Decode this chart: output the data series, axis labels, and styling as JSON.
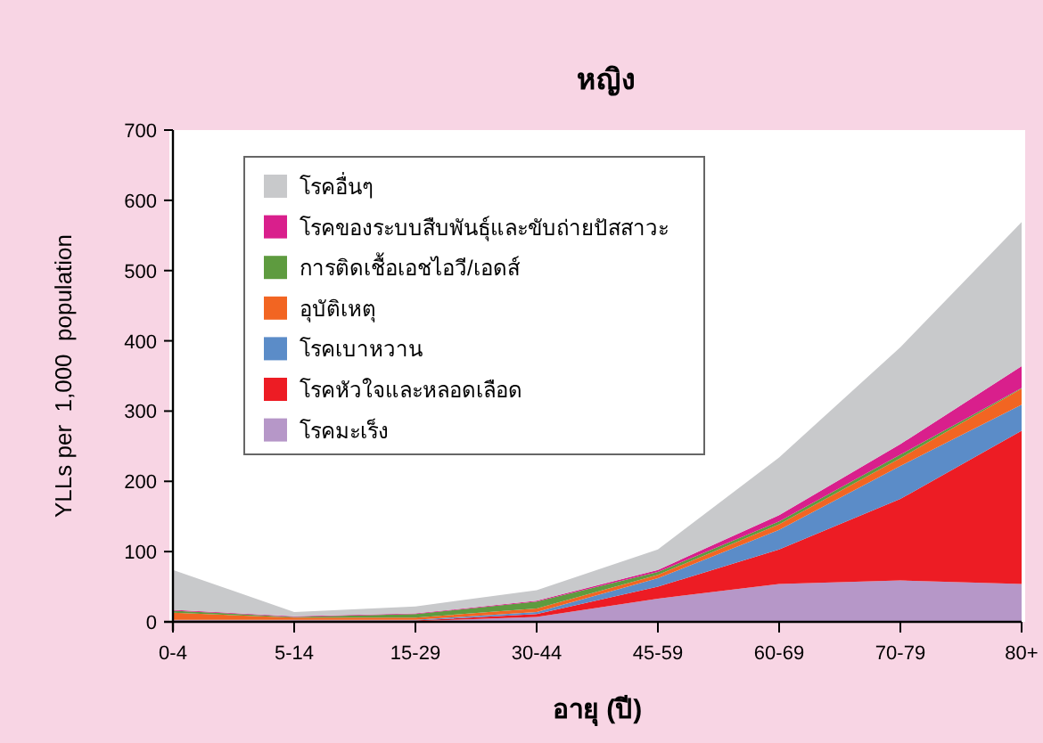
{
  "chart_data": {
    "type": "area",
    "stacked": true,
    "title": "หญิง",
    "xlabel": "อายุ (ปี)",
    "ylabel": "YLLs per  1,000  population",
    "categories": [
      "0-4",
      "5-14",
      "15-29",
      "30-44",
      "45-59",
      "60-69",
      "70-79",
      "80+"
    ],
    "ylim": [
      0,
      700
    ],
    "yticks": [
      0,
      100,
      200,
      300,
      400,
      500,
      600,
      700
    ],
    "grid": false,
    "legend": "top left",
    "series": [
      {
        "name": "โรคมะเร็ง",
        "color": "#b697c8",
        "values": [
          1,
          1,
          1,
          7,
          33,
          54,
          59,
          54
        ]
      },
      {
        "name": "โรคหัวใจและหลอดเลือด",
        "color": "#ed1c24",
        "values": [
          1,
          1,
          1,
          4,
          17,
          49,
          116,
          218
        ]
      },
      {
        "name": "โรคเบาหวาน",
        "color": "#5b8cc8",
        "values": [
          1,
          1,
          1,
          3,
          12,
          28,
          47,
          37
        ]
      },
      {
        "name": "อุบัติเหตุ",
        "color": "#f26522",
        "values": [
          10,
          3,
          3,
          5,
          5,
          8,
          11,
          23
        ]
      },
      {
        "name": "การติดเชื้อเอชไอวี/เอดส์",
        "color": "#5e9b3f",
        "values": [
          3,
          1,
          5,
          10,
          4,
          4,
          5,
          1
        ]
      },
      {
        "name": "โรคของระบบสืบพันธุ์และขับถ่ายปัสสาวะ",
        "color": "#d91f8c",
        "values": [
          1,
          1,
          1,
          1,
          3,
          9,
          15,
          31
        ]
      },
      {
        "name": "โรคอื่นๆ",
        "color": "#c8c9cb",
        "values": [
          57,
          6,
          10,
          15,
          29,
          82,
          138,
          205
        ]
      }
    ]
  }
}
